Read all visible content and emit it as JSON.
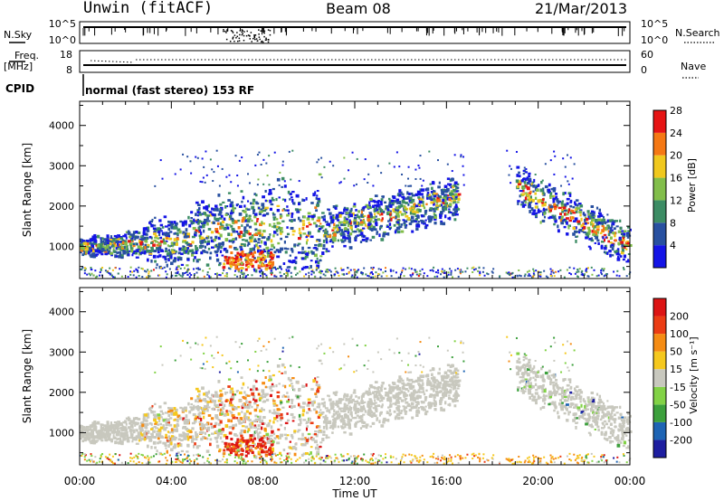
{
  "header": {
    "station": "Unwin (fitACF)",
    "beam": "Beam 08",
    "date": "21/Mar/2013"
  },
  "status_panels": {
    "nsky": {
      "label": "N.Sky",
      "ticks": [
        "10^5",
        "10^0"
      ]
    },
    "nsearch": {
      "label": "N.Search",
      "ticks": [
        "10^5",
        "10^0"
      ]
    },
    "freq": {
      "label": "Freq.",
      "unit": "[MHz]",
      "ticks": [
        "18",
        "8"
      ]
    },
    "nave": {
      "label": "Nave",
      "ticks": [
        "60",
        "0"
      ]
    },
    "cpid": {
      "label": "CPID",
      "mode": "normal (fast stereo) 153 RF"
    }
  },
  "chart_data": [
    {
      "type": "heatmap",
      "title": "Power",
      "ylabel": "Slant Range [km]",
      "ylim": [
        200,
        4600
      ],
      "yticks": [
        "1000",
        "2000",
        "3000",
        "4000"
      ],
      "colorbar_label": "Power [dB]",
      "colorbar_ticks": [
        "4",
        "8",
        "12",
        "16",
        "20",
        "24",
        "28"
      ],
      "colors": [
        "#1414e6",
        "#2850a0",
        "#3c8c64",
        "#82be4b",
        "#f0c81e",
        "#f57814",
        "#e61414"
      ]
    },
    {
      "type": "heatmap",
      "title": "Velocity",
      "ylabel": "Slant Range [km]",
      "ylim": [
        200,
        4600
      ],
      "yticks": [
        "1000",
        "2000",
        "3000",
        "4000"
      ],
      "colorbar_label": "Velocity [m s⁻¹]",
      "colorbar_ticks": [
        "200",
        "100",
        "50",
        "15",
        "-15",
        "-50",
        "-100",
        "-200"
      ],
      "colors": [
        "#1e1ea0",
        "#1e64b4",
        "#3ca03c",
        "#82d246",
        "#c8c8be",
        "#f5c81e",
        "#f58c14",
        "#eb3c14",
        "#dc1414"
      ]
    }
  ],
  "time_axis": {
    "label": "Time UT",
    "ticks": [
      "00:00",
      "04:00",
      "08:00",
      "12:00",
      "16:00",
      "20:00",
      "00:00"
    ]
  }
}
